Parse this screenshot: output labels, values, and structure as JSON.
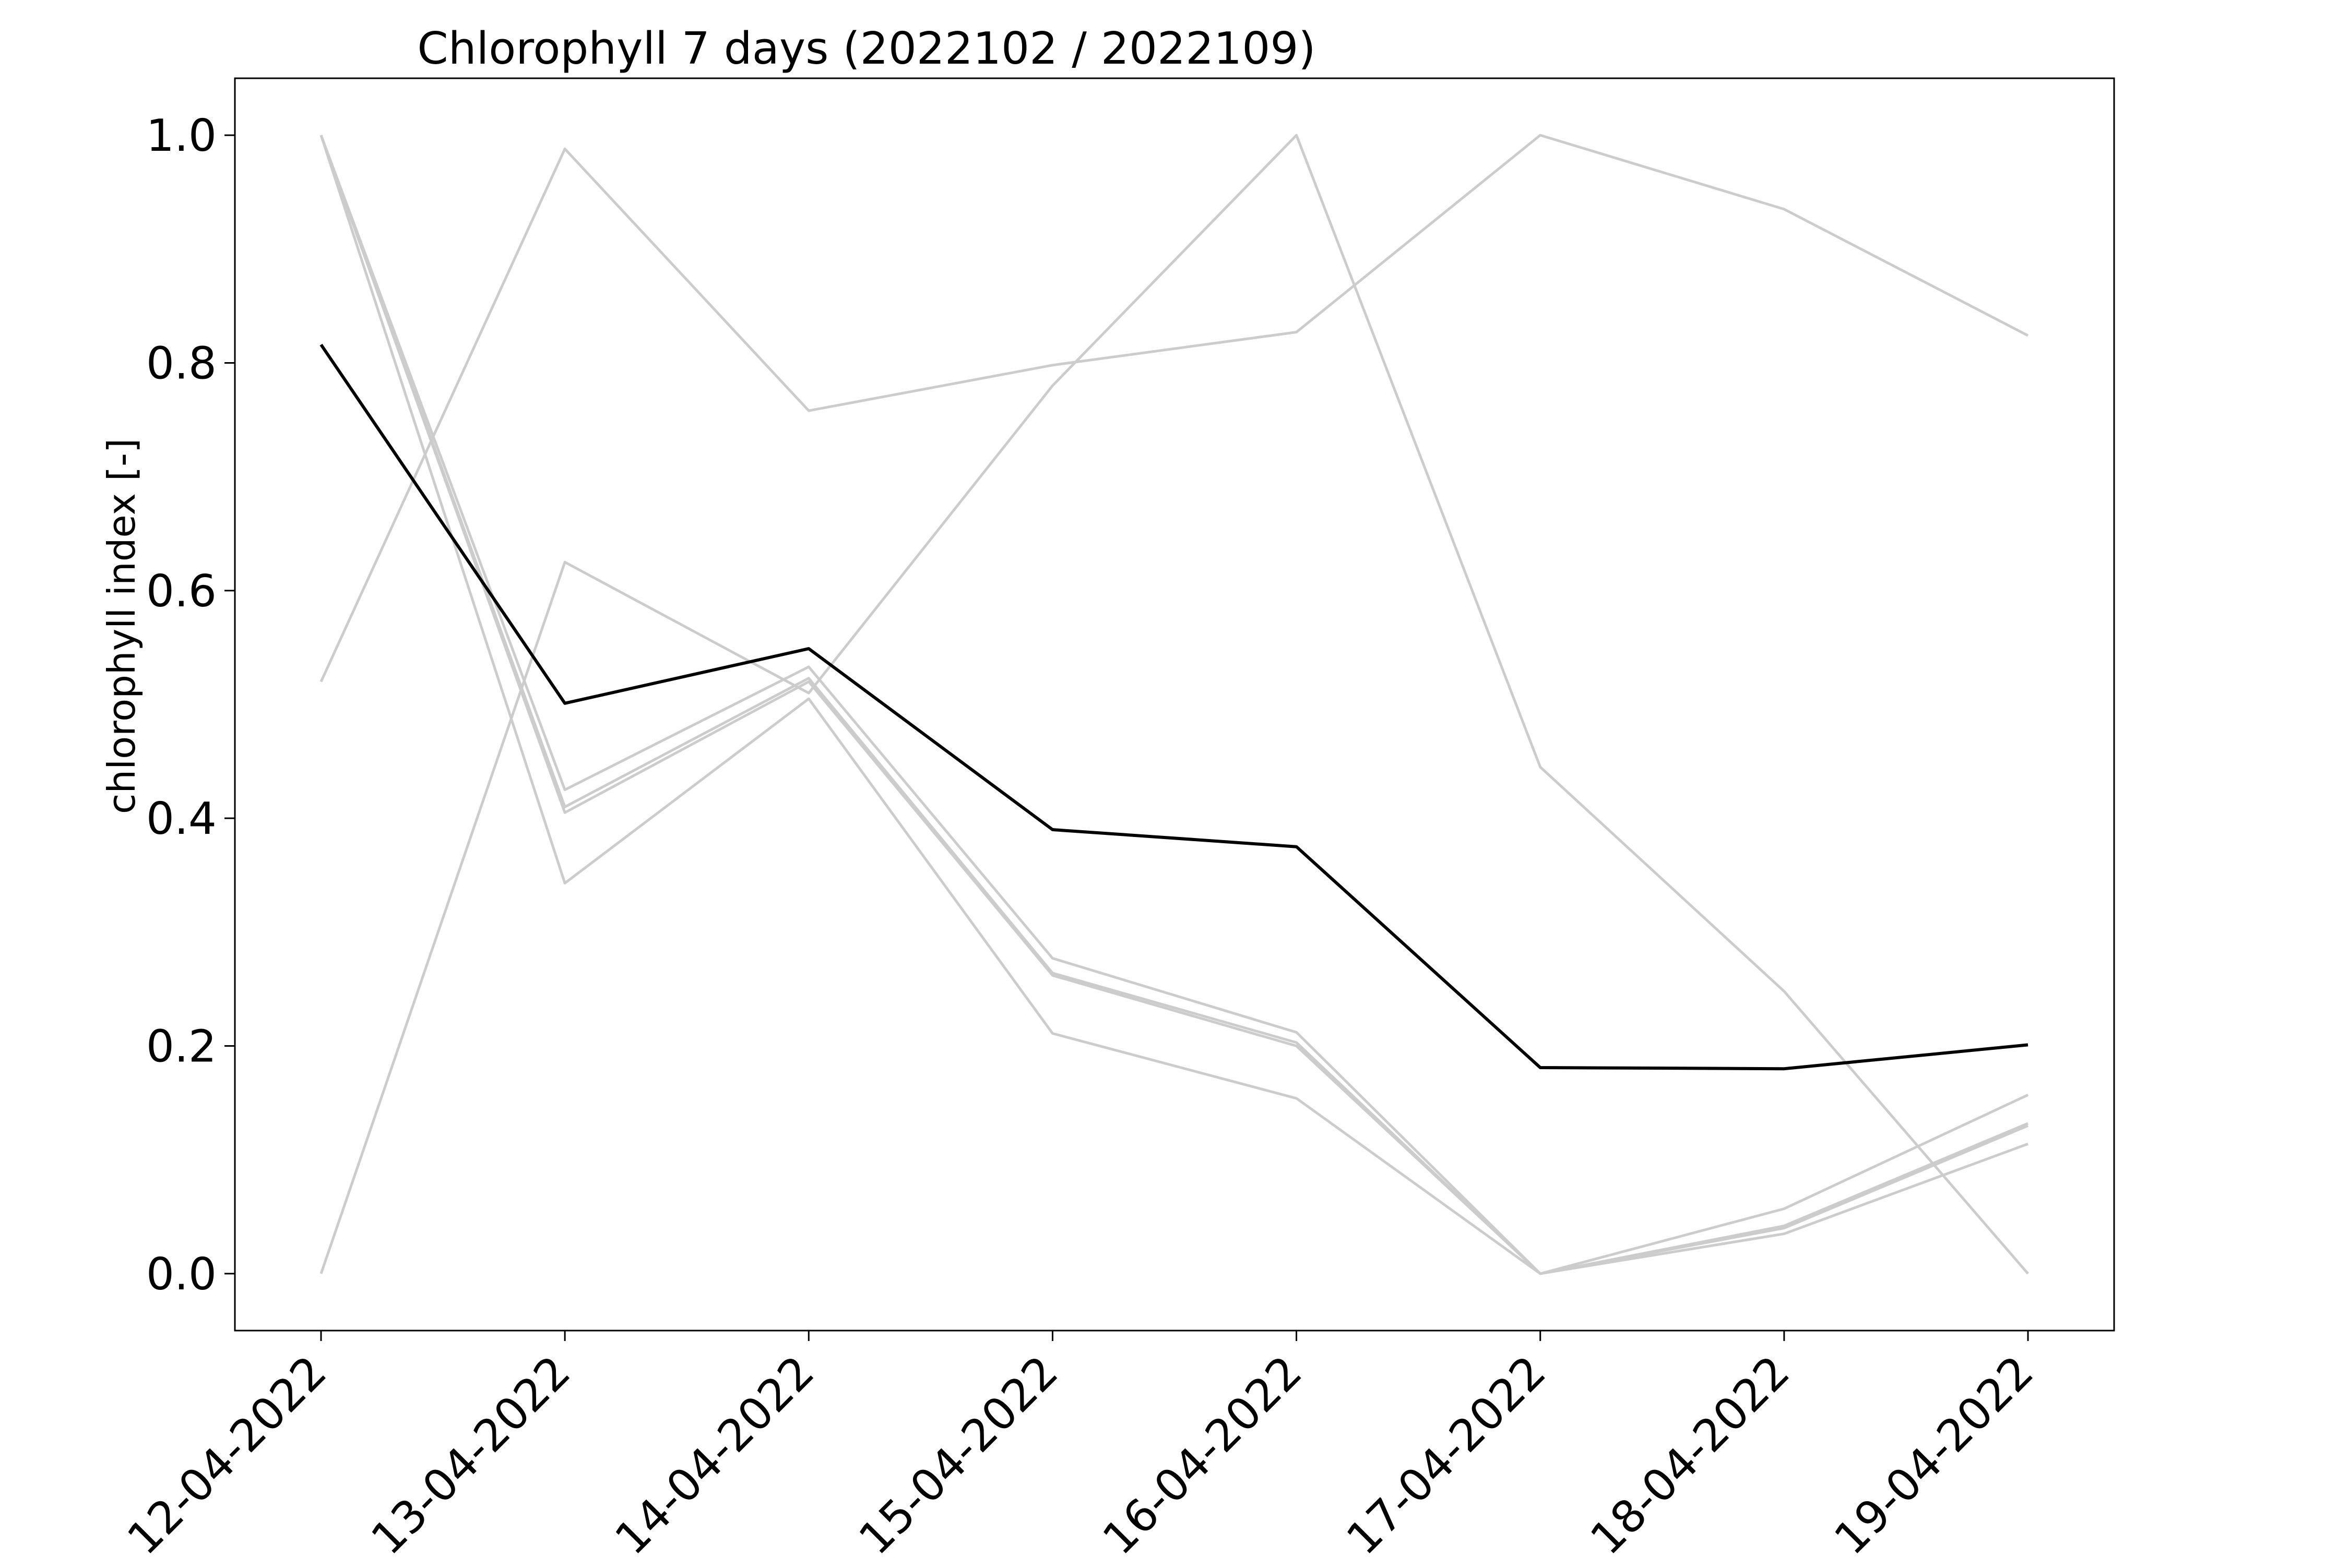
{
  "chart_data": {
    "type": "line",
    "title": "Chlorophyll 7 days (2022102 / 2022109)",
    "xlabel": "",
    "ylabel": "chlorophyll index [-]",
    "categories": [
      "12-04-2022",
      "13-04-2022",
      "14-04-2022",
      "15-04-2022",
      "16-04-2022",
      "17-04-2022",
      "18-04-2022",
      "19-04-2022"
    ],
    "y_ticks": [
      "0.0",
      "0.2",
      "0.4",
      "0.6",
      "0.8",
      "1.0"
    ],
    "ylim": [
      -0.05,
      1.05
    ],
    "grid": false,
    "legend": "none",
    "series": [
      {
        "color": "#cccccc",
        "values": [
          1.0,
          0.405,
          0.52,
          0.262,
          0.2,
          0.0,
          0.04,
          0.13
        ]
      },
      {
        "color": "#cccccc",
        "values": [
          1.0,
          0.41,
          0.523,
          0.264,
          0.203,
          0.0,
          0.042,
          0.132
        ]
      },
      {
        "color": "#cccccc",
        "values": [
          1.0,
          0.425,
          0.533,
          0.277,
          0.212,
          0.0,
          0.057,
          0.157
        ]
      },
      {
        "color": "#cccccc",
        "values": [
          1.0,
          0.343,
          0.505,
          0.211,
          0.154,
          0.0,
          0.035,
          0.114
        ]
      },
      {
        "color": "#cccccc",
        "values": [
          0.52,
          0.988,
          0.758,
          0.798,
          0.827,
          1.0,
          0.935,
          0.824
        ]
      },
      {
        "color": "#cccccc",
        "values": [
          0.0,
          0.625,
          0.51,
          0.78,
          1.0,
          0.445,
          0.248,
          0.0
        ]
      },
      {
        "color": "#000000",
        "values": [
          0.816,
          0.501,
          0.549,
          0.39,
          0.375,
          0.181,
          0.18,
          0.201
        ]
      }
    ]
  }
}
